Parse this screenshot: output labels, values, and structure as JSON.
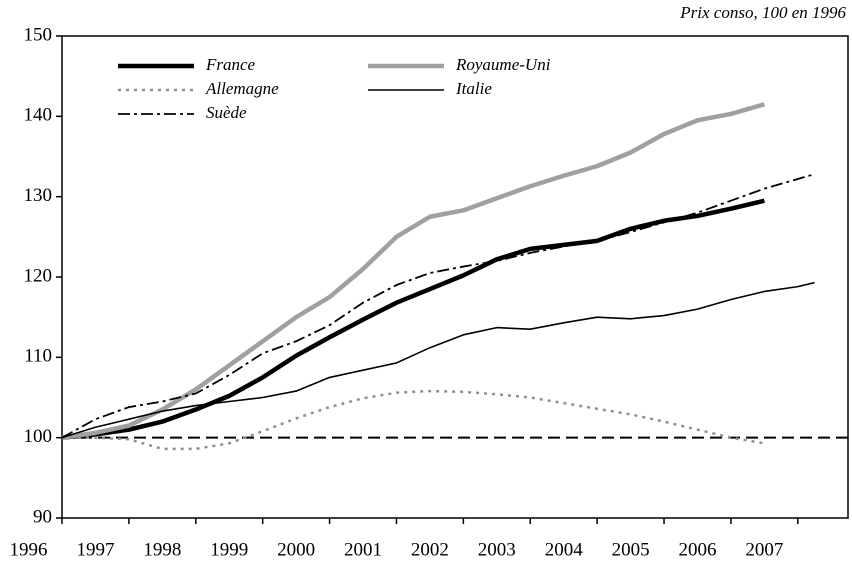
{
  "chart_data": {
    "type": "line",
    "subtitle": "Prix conso, 100 en 1996",
    "x": [
      1996,
      1996.5,
      1997,
      1997.5,
      1998,
      1998.5,
      1999,
      1999.5,
      2000,
      2000.5,
      2001,
      2001.5,
      2002,
      2002.5,
      2003,
      2003.5,
      2004,
      2004.5,
      2005,
      2005.5,
      2006,
      2006.5,
      2007,
      2007.25
    ],
    "series": [
      {
        "name": "France",
        "color": "#000000",
        "values": [
          100,
          100.4,
          101,
          102,
          103.5,
          105.2,
          107.5,
          110.2,
          112.5,
          114.7,
          116.8,
          118.5,
          120.2,
          122.2,
          123.5,
          124,
          124.5,
          126,
          127,
          127.6,
          128.5,
          129.5,
          null,
          null
        ]
      },
      {
        "name": "Royaume-Uni",
        "color": "#a0a0a0",
        "values": [
          100,
          100.6,
          101.5,
          103.5,
          106,
          109,
          112,
          115,
          117.5,
          121,
          125,
          127.5,
          128.3,
          129.8,
          131.3,
          132.6,
          133.8,
          135.5,
          137.8,
          139.5,
          140.3,
          141.5,
          null,
          null
        ]
      },
      {
        "name": "Allemagne",
        "color": "#909090",
        "values": [
          100,
          100,
          99.8,
          98.6,
          98.6,
          99.3,
          100.8,
          102.4,
          103.8,
          104.9,
          105.6,
          105.8,
          105.7,
          105.4,
          105,
          104.3,
          103.6,
          102.9,
          102,
          101,
          100,
          99.3,
          null,
          null
        ]
      },
      {
        "name": "Italie",
        "color": "#000000",
        "values": [
          100,
          101.3,
          102.3,
          103.3,
          104,
          104.5,
          105,
          105.8,
          107.5,
          108.4,
          109.3,
          111.2,
          112.8,
          113.7,
          113.5,
          114.3,
          115,
          114.8,
          115.2,
          116,
          117.2,
          118.2,
          118.8,
          119.3
        ]
      },
      {
        "name": "Suède",
        "color": "#000000",
        "values": [
          100,
          102.3,
          103.8,
          104.5,
          105.5,
          107.8,
          110.5,
          112,
          114,
          116.8,
          119,
          120.5,
          121.3,
          122,
          123,
          123.8,
          124.5,
          125.6,
          126.8,
          128,
          129.5,
          131,
          132.2,
          132.8
        ]
      }
    ],
    "reference_line": 100,
    "xlim": [
      1996,
      2007.75
    ],
    "xticks": [
      1996,
      1997,
      1998,
      1999,
      2000,
      2001,
      2002,
      2003,
      2004,
      2005,
      2006,
      2007
    ],
    "ylim": [
      90,
      150
    ],
    "yticks": [
      90,
      100,
      110,
      120,
      130,
      140,
      150
    ],
    "legend": "top-left"
  }
}
